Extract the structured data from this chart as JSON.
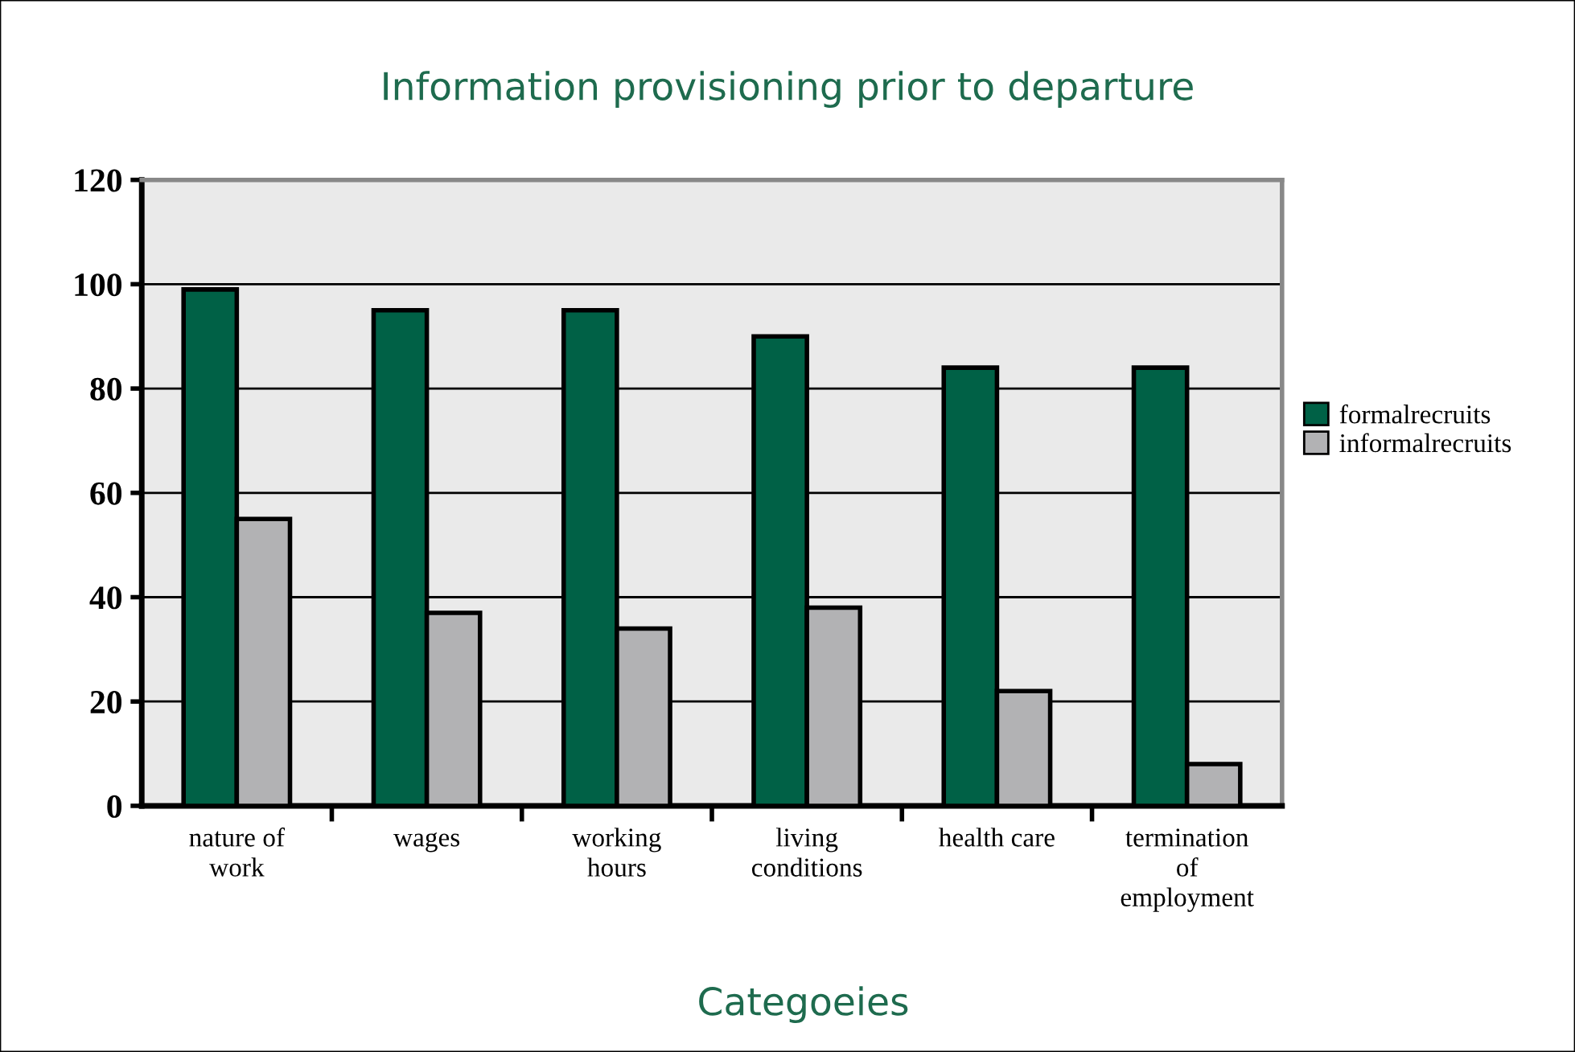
{
  "chart_data": {
    "type": "bar",
    "title": "Information provisioning prior to departure",
    "xlabel": "Categoeies",
    "categories": [
      "nature of\nwork",
      "wages",
      "working\nhours",
      "living\nconditions",
      "health care",
      "termination\nof\nemployment"
    ],
    "series": [
      {
        "name": "formalrecruits",
        "color": "#006146",
        "values": [
          99,
          95,
          95,
          90,
          84,
          84
        ]
      },
      {
        "name": "informalrecruits",
        "color": "#b2b2b4",
        "values": [
          55,
          37,
          34,
          38,
          22,
          8
        ]
      }
    ],
    "ylim": [
      0,
      120
    ],
    "yticks": [
      0,
      20,
      40,
      60,
      80,
      100,
      120
    ],
    "grid": "y",
    "legend": "right"
  }
}
